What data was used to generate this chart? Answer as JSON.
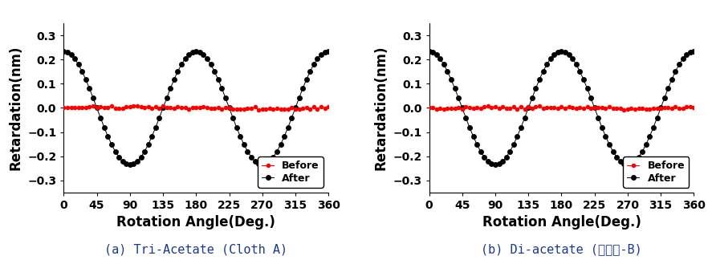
{
  "title_a": "(a) Tri-Acetate (Cloth A)",
  "title_b": "(b) Di-acetate (러빙포-B)",
  "xlabel": "Rotation Angle(Deg.)",
  "ylabel": "Retardation(nm)",
  "xlim": [
    0,
    360
  ],
  "ylim": [
    -0.35,
    0.35
  ],
  "xticks": [
    0,
    45,
    90,
    135,
    180,
    225,
    270,
    315,
    360
  ],
  "yticks": [
    -0.3,
    -0.2,
    -0.1,
    0.0,
    0.1,
    0.2,
    0.3
  ],
  "after_amp_a": 0.235,
  "after_amp_b": 0.235,
  "before_amp": 0.012,
  "before_color": "#ff0000",
  "after_color": "#000000",
  "background_color": "#ffffff",
  "legend_before": "Before",
  "legend_after": "After",
  "title_color": "#1a3a8c",
  "caption_fontsize": 11,
  "axis_label_fontsize": 12,
  "tick_fontsize": 10,
  "legend_fontsize": 9,
  "n_points": 73,
  "marker_size_after": 5,
  "marker_size_before": 4
}
